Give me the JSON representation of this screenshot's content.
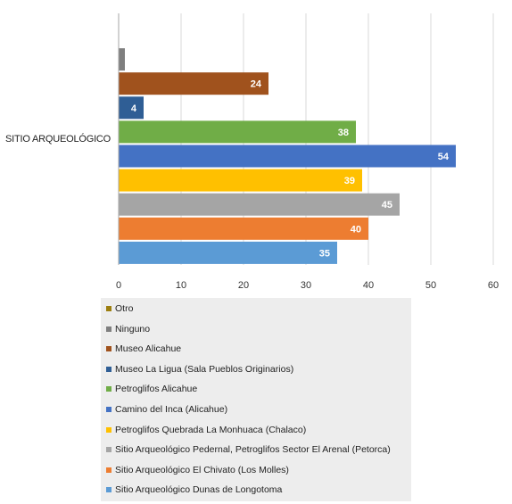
{
  "chart_data": {
    "type": "bar",
    "orientation": "horizontal",
    "categories": [
      "SITIO ARQUEOLÓGICO"
    ],
    "series": [
      {
        "name": "Otro",
        "values": [
          0
        ],
        "color": "#9c7e0f"
      },
      {
        "name": "Ninguno",
        "values": [
          1
        ],
        "color": "#7f7f7f"
      },
      {
        "name": "Museo Alicahue",
        "values": [
          24
        ],
        "color": "#a0521d"
      },
      {
        "name": "Museo La Ligua (Sala Pueblos Originarios)",
        "values": [
          4
        ],
        "color": "#2f5e95"
      },
      {
        "name": "Petroglifos Alicahue",
        "values": [
          38
        ],
        "color": "#70ad47"
      },
      {
        "name": "Camino del Inca (Alicahue)",
        "values": [
          54
        ],
        "color": "#4472c4"
      },
      {
        "name": "Petroglifos Quebrada La Monhuaca (Chalaco)",
        "values": [
          39
        ],
        "color": "#ffc000"
      },
      {
        "name": "Sitio Arqueológico Pedernal, Petroglifos Sector El Arenal (Petorca)",
        "values": [
          45
        ],
        "color": "#a5a5a5"
      },
      {
        "name": "Sitio Arqueológico El Chivato (Los Molles)",
        "values": [
          40
        ],
        "color": "#ed7d31"
      },
      {
        "name": "Sitio Arqueológico Dunas de Longotoma",
        "values": [
          35
        ],
        "color": "#5b9bd5"
      }
    ],
    "xlim": [
      0,
      60
    ],
    "xticks": [
      0,
      10,
      20,
      30,
      40,
      50,
      60
    ],
    "grid": true,
    "data_labels": true,
    "legend_position": "bottom"
  }
}
